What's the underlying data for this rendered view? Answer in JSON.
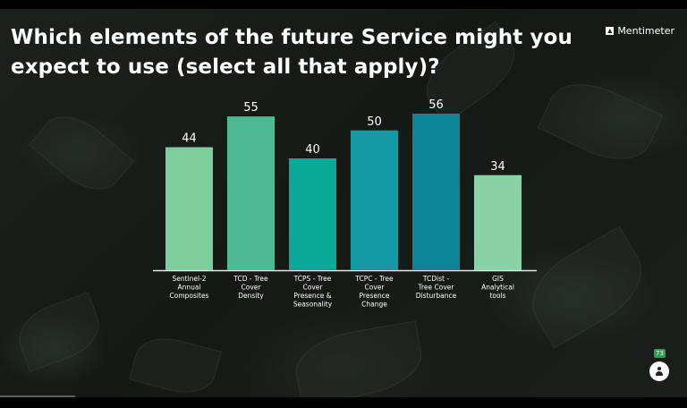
{
  "question": "Which elements of the future Service might you expect to use (select all that apply)?",
  "brand": "Mentimeter",
  "participant_count": "73",
  "chart_data": {
    "type": "bar",
    "categories": [
      [
        "Sentinel-2",
        "Annual",
        "Composites"
      ],
      [
        "TCD - Tree",
        "Cover",
        "Density"
      ],
      [
        "TCPS - Tree",
        "Cover",
        "Presence &",
        "Seasonality"
      ],
      [
        "TCPC - Tree",
        "Cover",
        "Presence",
        "Change"
      ],
      [
        "TCDist -",
        "Tree Cover",
        "Disturbance"
      ],
      [
        "GIS",
        "Analytical",
        "tools"
      ]
    ],
    "values": [
      44,
      55,
      40,
      50,
      56,
      34
    ],
    "colors": [
      "#7fcc9d",
      "#4fb894",
      "#0aa897",
      "#1599a2",
      "#0e8497",
      "#88d2a5"
    ],
    "title": "Which elements of the future Service might you expect to use (select all that apply)?",
    "xlabel": "",
    "ylabel": "",
    "ylim": [
      0,
      56
    ],
    "grid": false,
    "legend": "none"
  }
}
